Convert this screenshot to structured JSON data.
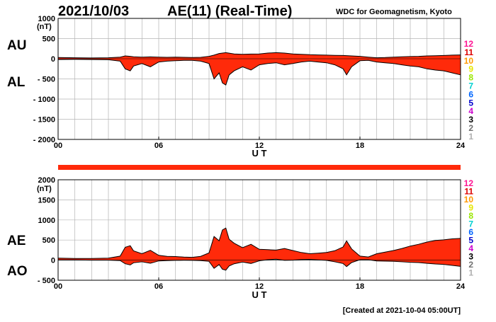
{
  "header": {
    "date": "2021/10/03",
    "title": "AE(11) (Real-Time)",
    "source": "WDC for Geomagnetism, Kyoto"
  },
  "footer": {
    "created": "[Created at 2021-10-04 05:00UT]"
  },
  "colors": {
    "fill": "#ff2a0a",
    "outline": "#000000",
    "grid": "#b4b4b4",
    "bar": "#ff2a0a",
    "bar_gap": "#ffcc99"
  },
  "legend": {
    "labels": [
      "12",
      "11",
      "10",
      "9",
      "8",
      "7",
      "6",
      "5",
      "4",
      "3",
      "2",
      "1"
    ],
    "colors": [
      "#ff1493",
      "#dd0000",
      "#ff9900",
      "#e6e600",
      "#99e600",
      "#00d0d0",
      "#0066ff",
      "#0000cc",
      "#cc00cc",
      "#000000",
      "#707070",
      "#b0b0b0"
    ]
  },
  "chart_data": [
    {
      "type": "area",
      "panel": "AU/AL",
      "labels_upper": "AU",
      "labels_lower": "AL",
      "unit": "(nT)",
      "xlabel": "U T",
      "xlim": [
        0,
        24
      ],
      "ylim": [
        -2000,
        1000
      ],
      "xticks": [
        0,
        6,
        12,
        18,
        24
      ],
      "xtick_labels": [
        "00",
        "06",
        "12",
        "18",
        "24"
      ],
      "yticks": [
        1000,
        500,
        0,
        -500,
        -1000,
        -1500,
        -2000
      ],
      "ytick_labels": [
        "1000",
        "500",
        "0",
        "- 500",
        "- 1000",
        "- 1500",
        "- 2000"
      ],
      "series": [
        {
          "name": "AU",
          "x": [
            0,
            1,
            2,
            3,
            3.7,
            4,
            4.3,
            4.5,
            5,
            5.5,
            6,
            6.5,
            7,
            7.5,
            8,
            8.5,
            9,
            9.3,
            9.6,
            10,
            10.5,
            11,
            11.5,
            12,
            12.5,
            13,
            13.5,
            14,
            14.5,
            15,
            15.5,
            16,
            16.5,
            17,
            17.5,
            18,
            18.5,
            19,
            19.5,
            20,
            20.5,
            21,
            21.5,
            22,
            22.5,
            23,
            23.5,
            24
          ],
          "values": [
            30,
            25,
            20,
            25,
            40,
            70,
            60,
            50,
            40,
            45,
            40,
            35,
            40,
            35,
            30,
            35,
            60,
            90,
            130,
            150,
            120,
            110,
            115,
            120,
            140,
            150,
            140,
            120,
            110,
            100,
            95,
            90,
            85,
            80,
            70,
            60,
            40,
            25,
            30,
            40,
            50,
            55,
            60,
            70,
            75,
            80,
            90,
            95
          ]
        },
        {
          "name": "AL",
          "x": [
            0,
            1,
            2,
            3,
            3.7,
            4,
            4.3,
            4.5,
            5,
            5.5,
            6,
            6.5,
            7,
            7.5,
            8,
            8.5,
            9,
            9.3,
            9.6,
            9.8,
            10,
            10.2,
            10.5,
            11,
            11.5,
            12,
            12.5,
            13,
            13.5,
            14,
            14.5,
            15,
            15.5,
            16,
            16.5,
            17,
            17.2,
            17.5,
            18,
            18.5,
            19,
            19.5,
            20,
            20.5,
            21,
            21.5,
            22,
            22.5,
            23,
            23.5,
            24
          ],
          "values": [
            -20,
            -15,
            -20,
            -25,
            -60,
            -250,
            -300,
            -180,
            -120,
            -200,
            -80,
            -60,
            -50,
            -40,
            -40,
            -60,
            -120,
            -500,
            -350,
            -600,
            -650,
            -400,
            -300,
            -200,
            -280,
            -150,
            -120,
            -100,
            -150,
            -120,
            -80,
            -60,
            -80,
            -100,
            -150,
            -250,
            -400,
            -200,
            -50,
            -40,
            -80,
            -100,
            -120,
            -150,
            -180,
            -200,
            -250,
            -280,
            -300,
            -350,
            -400
          ]
        }
      ]
    },
    {
      "type": "area",
      "panel": "AE/AO",
      "labels_upper": "AE",
      "labels_lower": "AO",
      "unit": "(nT)",
      "xlabel": "U T",
      "xlim": [
        0,
        24
      ],
      "ylim": [
        -500,
        2000
      ],
      "xticks": [
        0,
        6,
        12,
        18,
        24
      ],
      "xtick_labels": [
        "00",
        "06",
        "12",
        "18",
        "24"
      ],
      "yticks": [
        2000,
        1500,
        1000,
        500,
        0,
        -500
      ],
      "ytick_labels": [
        "2000",
        "1500",
        "1000",
        "500",
        "0",
        "- 500"
      ],
      "series": [
        {
          "name": "AE",
          "x": [
            0,
            1,
            2,
            3,
            3.7,
            4,
            4.3,
            4.5,
            5,
            5.5,
            6,
            6.5,
            7,
            7.5,
            8,
            8.5,
            9,
            9.3,
            9.6,
            9.8,
            10,
            10.2,
            10.5,
            11,
            11.5,
            12,
            12.5,
            13,
            13.5,
            14,
            14.5,
            15,
            15.5,
            16,
            16.5,
            17,
            17.2,
            17.5,
            18,
            18.5,
            19,
            19.5,
            20,
            20.5,
            21,
            21.5,
            22,
            22.5,
            23,
            23.5,
            24
          ],
          "values": [
            50,
            40,
            40,
            50,
            100,
            320,
            360,
            230,
            160,
            245,
            120,
            95,
            90,
            75,
            70,
            95,
            180,
            590,
            480,
            750,
            800,
            520,
            420,
            310,
            395,
            270,
            260,
            250,
            290,
            240,
            190,
            160,
            175,
            190,
            235,
            330,
            480,
            280,
            100,
            80,
            160,
            200,
            240,
            290,
            350,
            395,
            450,
            490,
            505,
            530,
            540
          ]
        },
        {
          "name": "AO",
          "x": [
            0,
            1,
            2,
            3,
            3.7,
            4,
            4.3,
            4.5,
            5,
            5.5,
            6,
            6.5,
            7,
            7.5,
            8,
            8.5,
            9,
            9.3,
            9.6,
            9.8,
            10,
            10.2,
            10.5,
            11,
            11.5,
            12,
            12.5,
            13,
            13.5,
            14,
            14.5,
            15,
            15.5,
            16,
            16.5,
            17,
            17.2,
            17.5,
            18,
            18.5,
            19,
            19.5,
            20,
            20.5,
            21,
            21.5,
            22,
            22.5,
            23,
            23.5,
            24
          ],
          "values": [
            5,
            5,
            0,
            0,
            -10,
            -90,
            -120,
            -65,
            -40,
            -78,
            -20,
            -13,
            -5,
            -3,
            -5,
            -13,
            -30,
            -205,
            -110,
            -225,
            -250,
            -145,
            -90,
            -45,
            -83,
            -15,
            10,
            25,
            -5,
            0,
            15,
            20,
            5,
            -5,
            -40,
            -85,
            -160,
            -60,
            10,
            10,
            -20,
            -25,
            -30,
            -40,
            -53,
            -60,
            -80,
            -95,
            -105,
            -130,
            -155
          ]
        }
      ]
    }
  ]
}
